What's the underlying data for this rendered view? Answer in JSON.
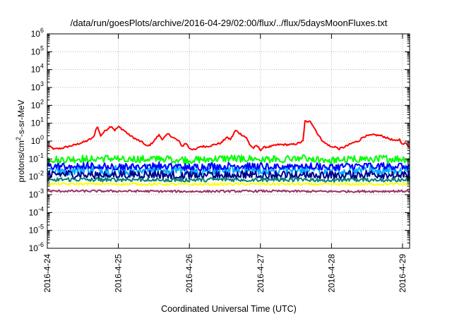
{
  "chart_data": {
    "type": "line",
    "title": "/data/run/goesPlots/archive/2016-04-29/02:00/flux/../flux/5daysMoonFluxes.txt",
    "xlabel": "Coordinated Universal Time (UTC)",
    "ylabel": {
      "base": "protons/cm",
      "sup": "2",
      "rest": "-s-sr-MeV"
    },
    "y_scale": "log",
    "ylim_exp": [
      -6,
      6
    ],
    "y_tick_exponents": [
      -6,
      -5,
      -4,
      -3,
      -2,
      -1,
      0,
      1,
      2,
      3,
      4,
      5,
      6
    ],
    "x_start": "2016-4-24",
    "x_range_days": [
      0,
      5.1
    ],
    "x_ticks": [
      {
        "day": 0,
        "label": "2016-4-24"
      },
      {
        "day": 1,
        "label": "2016-4-25"
      },
      {
        "day": 2,
        "label": "2016-4-26"
      },
      {
        "day": 3,
        "label": "2016-4-27"
      },
      {
        "day": 4,
        "label": "2016-4-28"
      },
      {
        "day": 5,
        "label": "2016-4-29"
      }
    ],
    "grid": true,
    "legend": "none",
    "series": [
      {
        "color": "#ff0000",
        "noise": 0.05,
        "points": [
          [
            0,
            -0.25
          ],
          [
            0.1,
            -0.45
          ],
          [
            0.2,
            -0.4
          ],
          [
            0.3,
            -0.3
          ],
          [
            0.4,
            -0.2
          ],
          [
            0.55,
            0.0
          ],
          [
            0.65,
            0.2
          ],
          [
            0.7,
            0.85
          ],
          [
            0.75,
            0.3
          ],
          [
            0.82,
            0.6
          ],
          [
            0.9,
            0.85
          ],
          [
            0.95,
            0.6
          ],
          [
            1.0,
            0.8
          ],
          [
            1.08,
            0.6
          ],
          [
            1.15,
            0.35
          ],
          [
            1.25,
            0.1
          ],
          [
            1.35,
            -0.1
          ],
          [
            1.4,
            -0.3
          ],
          [
            1.45,
            -0.2
          ],
          [
            1.5,
            0.0
          ],
          [
            1.57,
            0.35
          ],
          [
            1.62,
            0.1
          ],
          [
            1.7,
            0.4
          ],
          [
            1.77,
            0.2
          ],
          [
            1.85,
            0.0
          ],
          [
            1.9,
            -0.3
          ],
          [
            1.95,
            -0.1
          ],
          [
            2.0,
            -0.4
          ],
          [
            2.08,
            -0.5
          ],
          [
            2.15,
            -0.3
          ],
          [
            2.25,
            -0.3
          ],
          [
            2.35,
            -0.2
          ],
          [
            2.45,
            -0.1
          ],
          [
            2.52,
            0.2
          ],
          [
            2.58,
            0.1
          ],
          [
            2.65,
            0.6
          ],
          [
            2.72,
            0.4
          ],
          [
            2.8,
            0.2
          ],
          [
            2.85,
            -0.2
          ],
          [
            2.9,
            -0.4
          ],
          [
            2.95,
            -0.25
          ],
          [
            3.0,
            -0.5
          ],
          [
            3.05,
            -0.35
          ],
          [
            3.15,
            -0.3
          ],
          [
            3.25,
            -0.2
          ],
          [
            3.35,
            -0.2
          ],
          [
            3.45,
            -0.2
          ],
          [
            3.55,
            -0.1
          ],
          [
            3.6,
            0.0
          ],
          [
            3.63,
            1.25
          ],
          [
            3.66,
            1.0
          ],
          [
            3.7,
            1.15
          ],
          [
            3.75,
            0.8
          ],
          [
            3.82,
            0.3
          ],
          [
            3.9,
            -0.1
          ],
          [
            3.95,
            -0.2
          ],
          [
            4.0,
            -0.35
          ],
          [
            4.05,
            -0.3
          ],
          [
            4.1,
            -0.45
          ],
          [
            4.2,
            -0.3
          ],
          [
            4.3,
            -0.1
          ],
          [
            4.38,
            0.0
          ],
          [
            4.45,
            0.25
          ],
          [
            4.52,
            0.3
          ],
          [
            4.6,
            0.35
          ],
          [
            4.7,
            0.3
          ],
          [
            4.8,
            0.15
          ],
          [
            4.9,
            0.0
          ],
          [
            4.96,
            0.1
          ],
          [
            5.0,
            -0.2
          ],
          [
            5.05,
            -0.1
          ],
          [
            5.1,
            -0.35
          ]
        ]
      },
      {
        "color": "#00ff00",
        "noise": 0.22,
        "points": [
          [
            0,
            -1.0
          ],
          [
            0.3,
            -1.02
          ],
          [
            0.6,
            -0.95
          ],
          [
            1.0,
            -0.98
          ],
          [
            1.3,
            -1.0
          ],
          [
            1.6,
            -0.95
          ],
          [
            2.0,
            -1.05
          ],
          [
            2.3,
            -1.0
          ],
          [
            2.6,
            -0.96
          ],
          [
            3.0,
            -1.0
          ],
          [
            3.3,
            -1.0
          ],
          [
            3.6,
            -0.95
          ],
          [
            4.0,
            -1.05
          ],
          [
            4.3,
            -1.0
          ],
          [
            4.6,
            -0.97
          ],
          [
            5.1,
            -1.0
          ]
        ]
      },
      {
        "color": "#00aaff",
        "noise": 0.3,
        "points": [
          [
            0,
            -1.6
          ],
          [
            0.3,
            -1.62
          ],
          [
            0.6,
            -1.55
          ],
          [
            1.0,
            -1.6
          ],
          [
            1.3,
            -1.58
          ],
          [
            1.6,
            -1.55
          ],
          [
            2.0,
            -1.65
          ],
          [
            2.3,
            -1.6
          ],
          [
            2.6,
            -1.56
          ],
          [
            3.0,
            -1.6
          ],
          [
            3.3,
            -1.6
          ],
          [
            3.6,
            -1.55
          ],
          [
            4.0,
            -1.65
          ],
          [
            4.3,
            -1.6
          ],
          [
            4.6,
            -1.57
          ],
          [
            5.1,
            -1.6
          ]
        ]
      },
      {
        "color": "#0000ff",
        "noise": 0.22,
        "points": [
          [
            0,
            -1.4
          ],
          [
            0.3,
            -1.42
          ],
          [
            0.6,
            -1.35
          ],
          [
            1.0,
            -1.4
          ],
          [
            1.3,
            -1.38
          ],
          [
            1.6,
            -1.35
          ],
          [
            2.0,
            -1.45
          ],
          [
            2.3,
            -1.4
          ],
          [
            2.6,
            -1.36
          ],
          [
            3.0,
            -1.4
          ],
          [
            3.3,
            -1.4
          ],
          [
            3.6,
            -1.35
          ],
          [
            4.0,
            -1.45
          ],
          [
            4.3,
            -1.4
          ],
          [
            4.6,
            -1.37
          ],
          [
            5.1,
            -1.4
          ]
        ]
      },
      {
        "color": "#000088",
        "noise": 0.25,
        "points": [
          [
            0,
            -1.85
          ],
          [
            0.5,
            -1.85
          ],
          [
            1.0,
            -1.85
          ],
          [
            1.5,
            -1.85
          ],
          [
            2.0,
            -1.88
          ],
          [
            2.5,
            -1.85
          ],
          [
            3.0,
            -1.85
          ],
          [
            3.5,
            -1.85
          ],
          [
            4.0,
            -1.88
          ],
          [
            4.5,
            -1.85
          ],
          [
            5.1,
            -1.85
          ]
        ]
      },
      {
        "color": "#008080",
        "noise": 0.12,
        "points": [
          [
            0,
            -2.15
          ],
          [
            0.5,
            -2.15
          ],
          [
            1.0,
            -2.15
          ],
          [
            1.5,
            -2.15
          ],
          [
            2.0,
            -2.17
          ],
          [
            2.5,
            -2.15
          ],
          [
            3.0,
            -2.15
          ],
          [
            3.5,
            -2.15
          ],
          [
            4.0,
            -2.17
          ],
          [
            4.5,
            -2.15
          ],
          [
            5.1,
            -2.15
          ]
        ]
      },
      {
        "color": "#ffff00",
        "noise": 0.06,
        "points": [
          [
            0,
            -2.4
          ],
          [
            1.0,
            -2.4
          ],
          [
            2.0,
            -2.42
          ],
          [
            3.0,
            -2.4
          ],
          [
            4.0,
            -2.42
          ],
          [
            5.1,
            -2.4
          ]
        ]
      },
      {
        "color": "#993366",
        "noise": 0.06,
        "points": [
          [
            0,
            -2.8
          ],
          [
            1.0,
            -2.8
          ],
          [
            2.0,
            -2.82
          ],
          [
            3.0,
            -2.8
          ],
          [
            4.0,
            -2.82
          ],
          [
            5.1,
            -2.8
          ]
        ]
      }
    ]
  }
}
